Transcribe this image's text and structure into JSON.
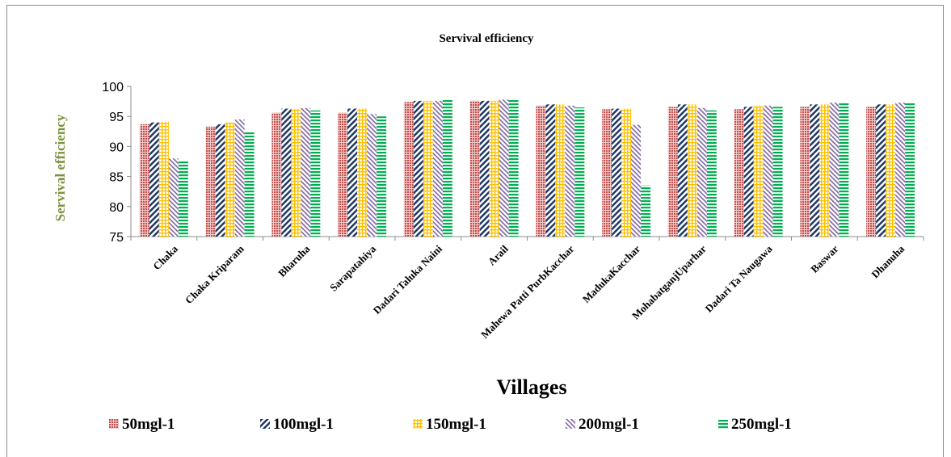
{
  "chart_data": {
    "type": "bar",
    "title": "Servival efficiency",
    "xlabel": "Villages",
    "ylabel": "Servival efficiency",
    "ylim": [
      75,
      100
    ],
    "yticks": [
      75,
      80,
      85,
      90,
      95,
      100
    ],
    "grid": false,
    "legend_position": "bottom",
    "categories": [
      "Chaka",
      "Chaka Kriparam",
      "Bharuha",
      "Sarapatahiya",
      "Dadari Taluka Naini",
      "Arail",
      "Mahewa Patti PurbKacchar",
      "MadukaKacchar",
      "MohabatganjUparhar",
      "Dadari Ta Naugawa",
      "Baswar",
      "Dhanuha"
    ],
    "series": [
      {
        "name": "50mgl-1",
        "color": "#c0504d",
        "pattern": "dots",
        "values": [
          93.7,
          93.3,
          95.6,
          95.6,
          97.4,
          97.6,
          96.8,
          96.2,
          96.6,
          96.2,
          96.6,
          96.6
        ]
      },
      {
        "name": "100mgl-1",
        "color": "#1f3864",
        "pattern": "diagonal",
        "values": [
          94.0,
          93.7,
          96.3,
          96.3,
          97.6,
          97.6,
          97.0,
          96.3,
          97.0,
          96.6,
          97.0,
          97.0
        ]
      },
      {
        "name": "150mgl-1",
        "color": "#ffc000",
        "pattern": "grid",
        "values": [
          94.1,
          94.0,
          96.2,
          96.3,
          97.6,
          97.6,
          97.0,
          96.3,
          97.0,
          96.8,
          97.0,
          97.0
        ]
      },
      {
        "name": "200mgl-1",
        "color": "#8064a2",
        "pattern": "diagonal-rev",
        "values": [
          88.0,
          94.5,
          96.4,
          95.4,
          97.6,
          97.8,
          96.8,
          93.6,
          96.4,
          96.8,
          97.3,
          97.3
        ]
      },
      {
        "name": "250mgl-1",
        "color": "#00b050",
        "pattern": "horizontal",
        "values": [
          87.5,
          92.5,
          96.0,
          95.0,
          97.8,
          97.8,
          96.5,
          83.5,
          96.0,
          96.6,
          97.3,
          97.3
        ]
      }
    ]
  }
}
